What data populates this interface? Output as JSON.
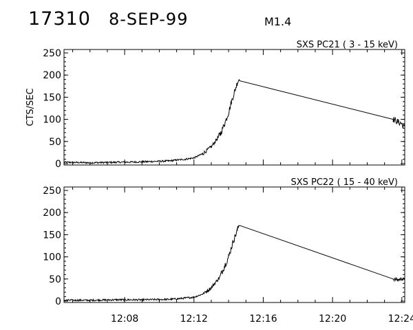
{
  "header": {
    "event_id": "17310",
    "date": "8-SEP-99",
    "flare_class": "M1.4"
  },
  "chart_data": [
    {
      "type": "line",
      "title": "SXS PC21  (  3 - 15 keV)",
      "ylabel": "CTS/SEC",
      "xlabel": "",
      "xlim": [
        "12:04:30",
        "12:24:10"
      ],
      "ylim": [
        0,
        250
      ],
      "yticks": [
        0,
        50,
        100,
        150,
        200,
        250
      ],
      "xticks": [
        "12:08",
        "12:12",
        "12:16",
        "12:20",
        "12:24"
      ],
      "grid": false,
      "series": [
        {
          "x": [
            "12:04:30",
            "12:06:00",
            "12:07:30",
            "12:09:00",
            "12:10:30",
            "12:11:00",
            "12:11:30",
            "12:12:00",
            "12:12:30",
            "12:13:00",
            "12:13:30",
            "12:13:45",
            "12:14:00",
            "12:14:10",
            "12:14:20",
            "12:14:30",
            "12:14:38",
            "12:23:30",
            "12:23:45",
            "12:24:00",
            "12:24:10"
          ],
          "y": [
            3,
            2,
            3,
            4,
            6,
            8,
            10,
            13,
            22,
            38,
            65,
            88,
            115,
            140,
            162,
            182,
            193,
            100,
            95,
            90,
            80
          ]
        }
      ]
    },
    {
      "type": "line",
      "title": "SXS PC22  ( 15 - 40 keV)",
      "ylabel": "",
      "xlabel": "",
      "xlim": [
        "12:04:30",
        "12:24:10"
      ],
      "ylim": [
        0,
        250
      ],
      "yticks": [
        0,
        50,
        100,
        150,
        200,
        250
      ],
      "xticks": [
        "12:08",
        "12:12",
        "12:16",
        "12:20",
        "12:24"
      ],
      "grid": false,
      "series": [
        {
          "x": [
            "12:04:30",
            "12:06:00",
            "12:07:30",
            "12:09:00",
            "12:10:30",
            "12:11:00",
            "12:11:30",
            "12:12:00",
            "12:12:30",
            "12:13:00",
            "12:13:30",
            "12:13:45",
            "12:14:00",
            "12:14:10",
            "12:14:20",
            "12:14:30",
            "12:14:38",
            "12:23:30",
            "12:23:45",
            "12:24:00",
            "12:24:10"
          ],
          "y": [
            2,
            2,
            3,
            3,
            4,
            5,
            7,
            9,
            16,
            30,
            55,
            78,
            100,
            122,
            142,
            160,
            176,
            50,
            48,
            50,
            48
          ]
        }
      ]
    }
  ]
}
